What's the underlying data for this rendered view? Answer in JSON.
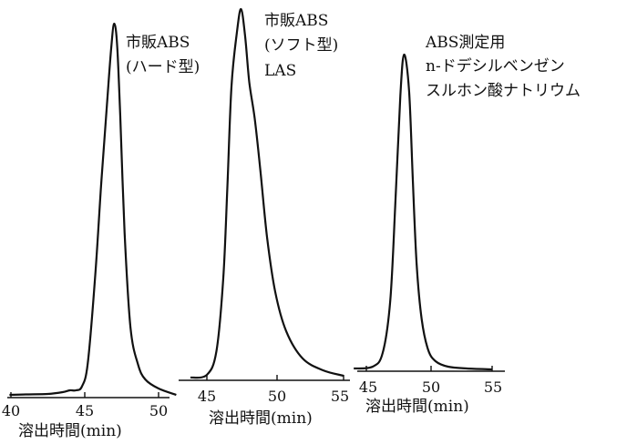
{
  "chart_data": [
    {
      "type": "line",
      "title_lines": [
        "市販ABS",
        "(ハード型)"
      ],
      "xlabel": "溶出時間(min)",
      "xlim": [
        40,
        50
      ],
      "ticks": [
        40,
        45,
        50
      ],
      "tick_labels": [
        "40",
        "45",
        "50"
      ],
      "grid": false,
      "series": [
        {
          "x": [
            39.9,
            41,
            42.5,
            43.5,
            44,
            44.4,
            44.8,
            45.2,
            45.7,
            46.1,
            46.5,
            46.8,
            47.0,
            47.2,
            47.4,
            47.7,
            48.1,
            48.6,
            49.1,
            50.0,
            51.2
          ],
          "y": [
            1,
            1.5,
            2,
            4,
            6,
            6,
            10,
            35,
            130,
            230,
            320,
            385,
            410,
            385,
            310,
            180,
            75,
            35,
            18,
            8,
            1
          ]
        }
      ]
    },
    {
      "type": "line",
      "title_lines": [
        "市販ABS",
        "(ソフト型)",
        "LAS"
      ],
      "xlabel": "溶出時間(min)",
      "xlim": [
        45,
        55
      ],
      "ticks": [
        45,
        50,
        55
      ],
      "tick_labels": [
        "45",
        "50",
        "55"
      ],
      "grid": false,
      "series": [
        {
          "x": [
            43.8,
            45.0,
            45.7,
            46.2,
            46.5,
            46.8,
            47.2,
            47.5,
            47.8,
            48.1,
            48.5,
            48.9,
            49.4,
            50.0,
            50.8,
            52.0,
            53.5,
            55.0
          ],
          "y": [
            1,
            4,
            30,
            110,
            210,
            320,
            380,
            405,
            375,
            325,
            285,
            230,
            155,
            95,
            52,
            22,
            9,
            3
          ]
        }
      ]
    },
    {
      "type": "line",
      "title_lines": [
        "ABS測定用",
        "n-ドデシルベンゼン",
        "スルホン酸ナトリウム"
      ],
      "xlabel": "溶出時間(min)",
      "xlim": [
        45,
        55
      ],
      "ticks": [
        45,
        50,
        55
      ],
      "tick_labels": [
        "45",
        "50",
        "55"
      ],
      "grid": false,
      "series": [
        {
          "x": [
            44.0,
            45.5,
            46.3,
            46.9,
            47.3,
            47.7,
            48.0,
            48.4,
            48.7,
            49.0,
            49.4,
            49.9,
            50.5,
            51.5,
            53.0,
            55.0
          ],
          "y": [
            1,
            3,
            18,
            75,
            180,
            300,
            345,
            305,
            205,
            115,
            55,
            22,
            9,
            3,
            1,
            0
          ]
        }
      ]
    }
  ]
}
